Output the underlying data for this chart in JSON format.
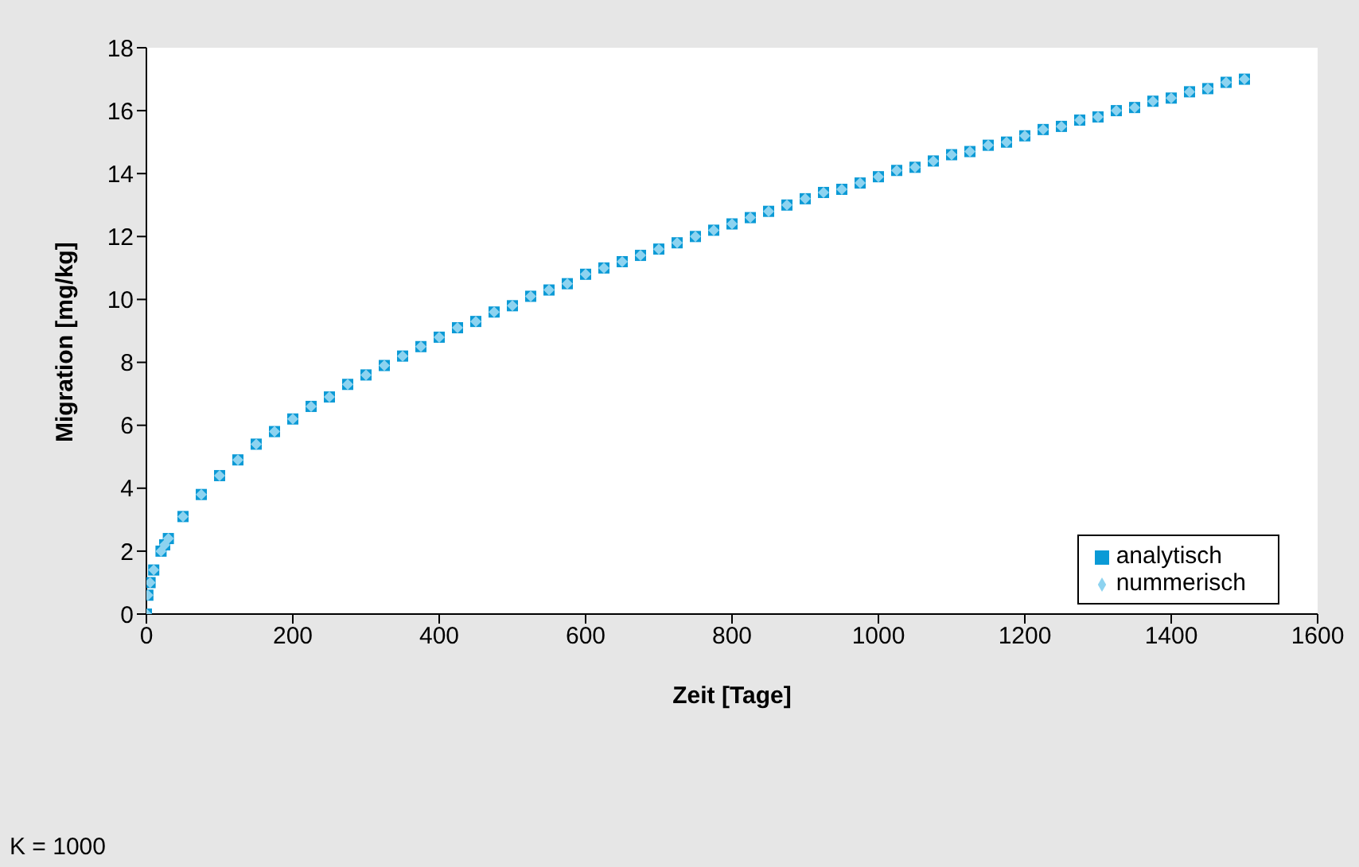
{
  "chart_data": {
    "type": "scatter",
    "xlabel": "Zeit [Tage]",
    "ylabel": "Migration [mg/kg]",
    "annotations": [
      "K = 1000"
    ],
    "x": [
      0,
      2,
      5,
      10,
      20,
      25,
      30,
      50,
      75,
      100,
      125,
      150,
      175,
      200,
      225,
      250,
      275,
      300,
      325,
      350,
      375,
      400,
      425,
      450,
      475,
      500,
      525,
      550,
      575,
      600,
      625,
      650,
      675,
      700,
      725,
      750,
      775,
      800,
      825,
      850,
      875,
      900,
      925,
      950,
      975,
      1000,
      1025,
      1050,
      1075,
      1100,
      1125,
      1150,
      1175,
      1200,
      1225,
      1250,
      1275,
      1300,
      1325,
      1350,
      1375,
      1400,
      1425,
      1450,
      1475,
      1500
    ],
    "series": [
      {
        "name": "analytisch",
        "color": "#0a9ad6",
        "marker": "square",
        "values": [
          0,
          0.6,
          1.0,
          1.4,
          2.0,
          2.2,
          2.4,
          3.1,
          3.8,
          4.4,
          4.9,
          5.4,
          5.8,
          6.2,
          6.6,
          6.9,
          7.3,
          7.6,
          7.9,
          8.2,
          8.5,
          8.8,
          9.1,
          9.3,
          9.6,
          9.8,
          10.1,
          10.3,
          10.5,
          10.8,
          11.0,
          11.2,
          11.4,
          11.6,
          11.8,
          12.0,
          12.2,
          12.4,
          12.6,
          12.8,
          13.0,
          13.2,
          13.4,
          13.5,
          13.7,
          13.9,
          14.1,
          14.2,
          14.4,
          14.6,
          14.7,
          14.9,
          15.0,
          15.2,
          15.4,
          15.5,
          15.7,
          15.8,
          16.0,
          16.1,
          16.3,
          16.4,
          16.6,
          16.7,
          16.9,
          17.0
        ]
      },
      {
        "name": "nummerisch",
        "color": "#8dd3f0",
        "marker": "diamond",
        "values": [
          0,
          0.6,
          1.0,
          1.4,
          2.0,
          2.2,
          2.4,
          3.1,
          3.8,
          4.4,
          4.9,
          5.4,
          5.8,
          6.2,
          6.6,
          6.9,
          7.3,
          7.6,
          7.9,
          8.2,
          8.5,
          8.8,
          9.1,
          9.3,
          9.6,
          9.8,
          10.1,
          10.3,
          10.5,
          10.8,
          11.0,
          11.2,
          11.4,
          11.6,
          11.8,
          12.0,
          12.2,
          12.4,
          12.6,
          12.8,
          13.0,
          13.2,
          13.4,
          13.5,
          13.7,
          13.9,
          14.1,
          14.2,
          14.4,
          14.6,
          14.7,
          14.9,
          15.0,
          15.2,
          15.4,
          15.5,
          15.7,
          15.8,
          16.0,
          16.1,
          16.3,
          16.4,
          16.6,
          16.7,
          16.9,
          17.0
        ]
      }
    ],
    "xlim": [
      0,
      1600
    ],
    "xticks": [
      0,
      200,
      400,
      600,
      800,
      1000,
      1200,
      1400,
      1600
    ],
    "ylim": [
      0,
      18
    ],
    "yticks": [
      0,
      2,
      4,
      6,
      8,
      10,
      12,
      14,
      16,
      18
    ],
    "grid": false,
    "legend": "bottom right"
  }
}
